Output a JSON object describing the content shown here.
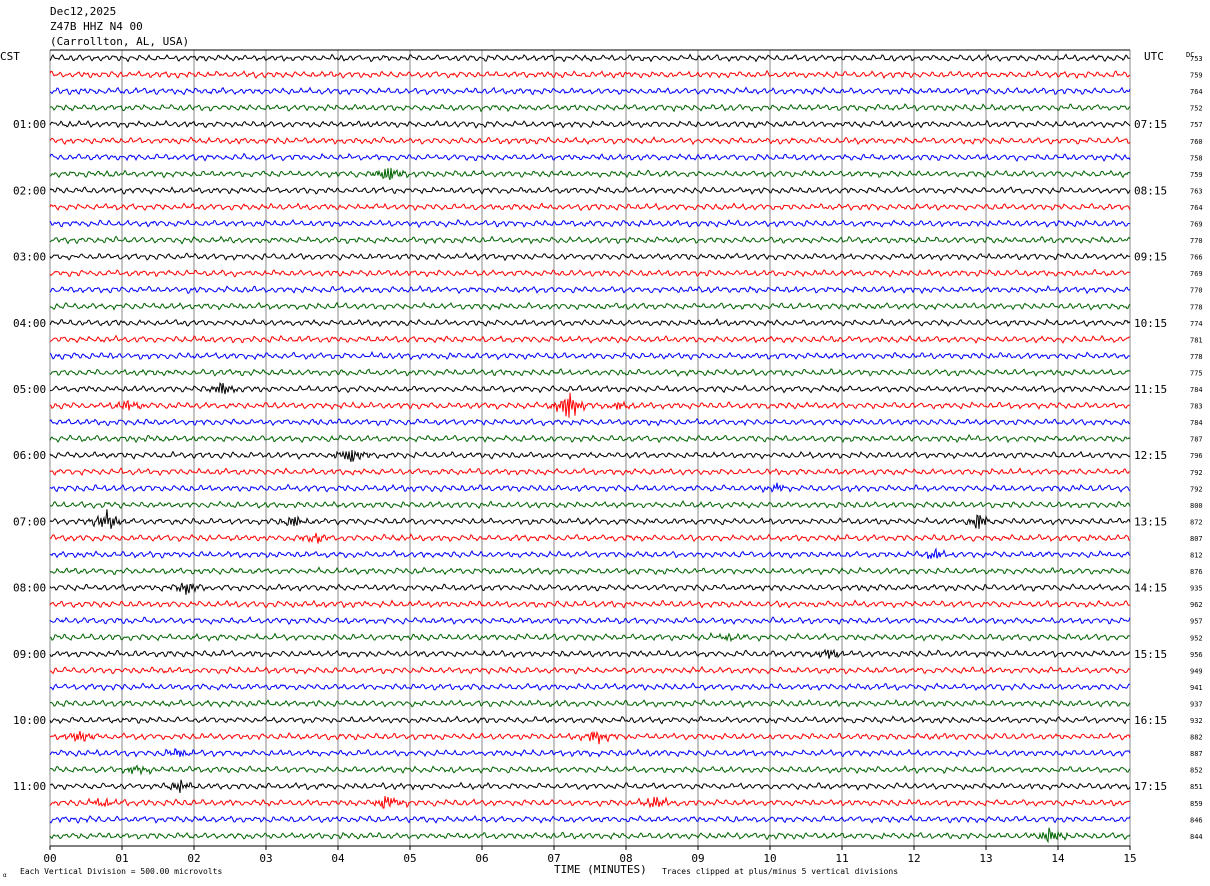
{
  "header": {
    "date": "Dec12,2025",
    "station": "Z47B HHZ N4 00",
    "location": "(Carrollton, AL, USA)"
  },
  "labels": {
    "left_tz": "CST",
    "right_tz": "UTC",
    "dc": "DC",
    "xlabel": "TIME (MINUTES)",
    "scale_note": "Each Vertical Division =  500.00 microvolts",
    "clip_note": "Traces clipped at plus/minus 5 vertical divisions"
  },
  "colors": {
    "trace_cycle": [
      "#000000",
      "#ff0000",
      "#0000ff",
      "#006400"
    ],
    "grid": "#888888"
  },
  "chart_data": {
    "type": "line",
    "title": "Z47B HHZ N4 00",
    "xlabel": "TIME (MINUTES)",
    "xlim": [
      0,
      15
    ],
    "x_ticks": [
      "00",
      "01",
      "02",
      "03",
      "04",
      "05",
      "06",
      "07",
      "08",
      "09",
      "10",
      "11",
      "12",
      "13",
      "14",
      "15"
    ],
    "left_time_labels": [
      "01:00",
      "02:00",
      "03:00",
      "04:00",
      "05:00",
      "06:00",
      "07:00",
      "08:00",
      "09:00",
      "10:00",
      "11:00"
    ],
    "right_time_labels": [
      "07:15",
      "08:15",
      "09:15",
      "10:15",
      "11:15",
      "12:15",
      "13:15",
      "14:15",
      "15:15",
      "16:15",
      "17:15"
    ],
    "traces_per_hour": 4,
    "dc_values": [
      "753",
      "759",
      "764",
      "752",
      "757",
      "760",
      "758",
      "759",
      "763",
      "764",
      "769",
      "770",
      "766",
      "769",
      "770",
      "778",
      "774",
      "781",
      "778",
      "775",
      "784",
      "783",
      "784",
      "787",
      "796",
      "792",
      "792",
      "800",
      "872",
      "807",
      "812",
      "876",
      "935",
      "962",
      "957",
      "952",
      "956",
      "949",
      "941",
      "937",
      "932",
      "882",
      "887",
      "852",
      "851",
      "859",
      "846",
      "844"
    ],
    "events": [
      {
        "trace": 7,
        "minute": 4.7,
        "amplitude": 3.0
      },
      {
        "trace": 20,
        "minute": 2.4,
        "amplitude": 1.8
      },
      {
        "trace": 21,
        "minute": 1.1,
        "amplitude": 1.6
      },
      {
        "trace": 21,
        "minute": 7.2,
        "amplitude": 4.0
      },
      {
        "trace": 21,
        "minute": 7.9,
        "amplitude": 1.2
      },
      {
        "trace": 24,
        "minute": 4.2,
        "amplitude": 2.8
      },
      {
        "trace": 26,
        "minute": 10.1,
        "amplitude": 1.0
      },
      {
        "trace": 28,
        "minute": 0.8,
        "amplitude": 3.2
      },
      {
        "trace": 28,
        "minute": 3.4,
        "amplitude": 1.6
      },
      {
        "trace": 28,
        "minute": 12.9,
        "amplitude": 2.2
      },
      {
        "trace": 29,
        "minute": 3.7,
        "amplitude": 1.2
      },
      {
        "trace": 30,
        "minute": 12.3,
        "amplitude": 1.4
      },
      {
        "trace": 32,
        "minute": 1.9,
        "amplitude": 1.8
      },
      {
        "trace": 35,
        "minute": 9.4,
        "amplitude": 1.2
      },
      {
        "trace": 36,
        "minute": 10.8,
        "amplitude": 1.8
      },
      {
        "trace": 41,
        "minute": 0.4,
        "amplitude": 1.8
      },
      {
        "trace": 41,
        "minute": 7.6,
        "amplitude": 2.0
      },
      {
        "trace": 42,
        "minute": 1.8,
        "amplitude": 1.2
      },
      {
        "trace": 43,
        "minute": 1.2,
        "amplitude": 1.6
      },
      {
        "trace": 44,
        "minute": 1.8,
        "amplitude": 1.6
      },
      {
        "trace": 45,
        "minute": 0.7,
        "amplitude": 1.4
      },
      {
        "trace": 45,
        "minute": 4.7,
        "amplitude": 2.4
      },
      {
        "trace": 45,
        "minute": 8.4,
        "amplitude": 1.8
      },
      {
        "trace": 47,
        "minute": 13.9,
        "amplitude": 2.2
      }
    ]
  }
}
